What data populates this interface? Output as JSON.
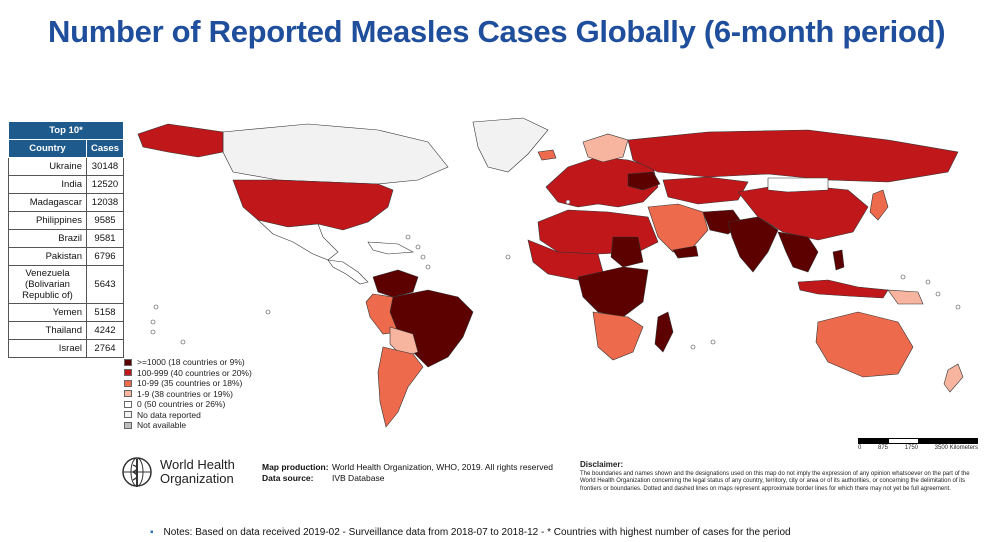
{
  "title": "Number of Reported Measles Cases Globally (6-month period)",
  "top10": {
    "header": "Top 10*",
    "col_country": "Country",
    "col_cases": "Cases",
    "rows": [
      {
        "country": "Ukraine",
        "cases": "30148"
      },
      {
        "country": "India",
        "cases": "12520"
      },
      {
        "country": "Madagascar",
        "cases": "12038"
      },
      {
        "country": "Philippines",
        "cases": "9585"
      },
      {
        "country": "Brazil",
        "cases": "9581"
      },
      {
        "country": "Pakistan",
        "cases": "6796"
      },
      {
        "country": "Venezuela (Bolivarian Republic of)",
        "cases": "5643"
      },
      {
        "country": "Yemen",
        "cases": "5158"
      },
      {
        "country": "Thailand",
        "cases": "4242"
      },
      {
        "country": "Israel",
        "cases": "2764"
      }
    ]
  },
  "legend": [
    {
      "label": ">=1000 (18 countries or 9%)",
      "color": "#5c0000"
    },
    {
      "label": "100-999 (40 countries or 20%)",
      "color": "#c0171b"
    },
    {
      "label": "10-99 (35 countries or 18%)",
      "color": "#ee6a4d"
    },
    {
      "label": "1-9 (38 countries or 19%)",
      "color": "#f7b49f"
    },
    {
      "label": "0 (50 countries or 26%)",
      "color": "#ffffff"
    },
    {
      "label": "No data reported",
      "color": "#f2f2f2"
    },
    {
      "label": "Not available",
      "color": "#bdbdbd"
    }
  ],
  "scale": {
    "ticks": [
      "0",
      "875",
      "1750",
      "3500 Kilometers"
    ]
  },
  "who": {
    "line1": "World Health",
    "line2": "Organization"
  },
  "production": {
    "label1": "Map production:",
    "value1": "World Health Organization, WHO, 2019. All rights reserved",
    "label2": "Data source:",
    "value2": "IVB Database"
  },
  "disclaimer": {
    "heading": "Disclaimer:",
    "text": "The boundaries and names shown and the designations used on this map do not imply the expression of any opinion whatsoever on the part of the World Health Organization concerning the legal status of any country, territory, city or area or of its authorities, or concerning the delimitation of its frontiers or boundaries. Dotted and dashed lines on maps represent approximate border lines for which there may not yet be full agreement."
  },
  "notes": "Notes: Based on data received 2019-02 - Surveillance data from 2018-07 to 2018-12 - * Countries with highest number of cases for the period"
}
